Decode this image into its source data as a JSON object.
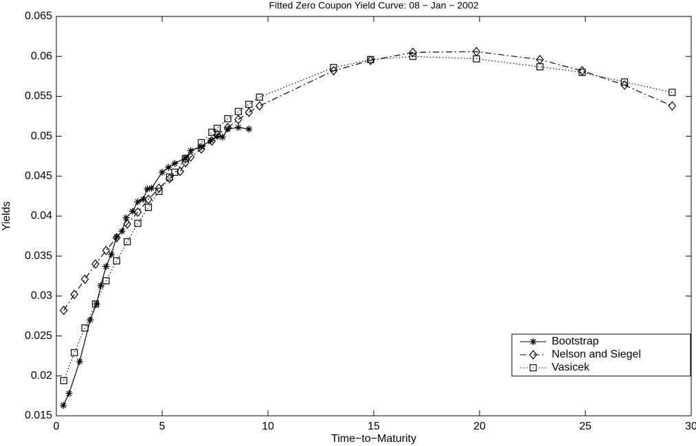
{
  "chart_data": {
    "type": "line",
    "title": "Fitted Zero Coupon Yield Curve: 08 − Jan − 2002",
    "x_label": "Time−to−Maturity",
    "y_label": "Yields",
    "xlim": [
      0,
      30
    ],
    "xticks": [
      0,
      5,
      10,
      15,
      20,
      25,
      30
    ],
    "ylim": [
      0.015,
      0.065
    ],
    "yticks": [
      0.015,
      0.02,
      0.025,
      0.03,
      0.035,
      0.04,
      0.045,
      0.05,
      0.055,
      0.06,
      0.065
    ],
    "grid": false,
    "legend_position": "lower-right",
    "series": [
      {
        "name": "Bootstrap",
        "color": "#000000",
        "marker": "star",
        "dash": "solid",
        "x": [
          0.33,
          0.6,
          1.1,
          1.6,
          1.9,
          2.1,
          2.35,
          2.6,
          2.85,
          3.1,
          3.3,
          3.6,
          3.85,
          4.1,
          4.3,
          4.5,
          5.0,
          5.3,
          5.6,
          6.1,
          6.35,
          6.85,
          7.3,
          7.6,
          7.85,
          8.1,
          8.6,
          9.1
        ],
        "values": [
          0.0163,
          0.0178,
          0.0218,
          0.027,
          0.029,
          0.0313,
          0.0337,
          0.0352,
          0.0374,
          0.0381,
          0.0398,
          0.0406,
          0.0418,
          0.0421,
          0.0434,
          0.0435,
          0.0455,
          0.0461,
          0.0466,
          0.0473,
          0.0482,
          0.0487,
          0.0495,
          0.05,
          0.0499,
          0.0509,
          0.0511,
          0.0509
        ]
      },
      {
        "name": "Nelson and Siegel",
        "color": "#000000",
        "marker": "diamond",
        "dash": "dashdot",
        "x": [
          0.35,
          0.85,
          1.35,
          1.85,
          2.35,
          2.85,
          3.35,
          3.85,
          4.35,
          4.85,
          5.35,
          5.85,
          6.1,
          6.35,
          6.85,
          7.35,
          7.6,
          8.1,
          8.6,
          9.1,
          9.6,
          13.1,
          14.85,
          16.85,
          19.85,
          22.85,
          24.85,
          26.85,
          29.1
        ],
        "values": [
          0.0282,
          0.0302,
          0.0321,
          0.034,
          0.0357,
          0.0373,
          0.039,
          0.0405,
          0.0421,
          0.0435,
          0.0447,
          0.0456,
          0.0467,
          0.0474,
          0.0484,
          0.0494,
          0.0502,
          0.0511,
          0.0521,
          0.053,
          0.0538,
          0.0582,
          0.0595,
          0.0605,
          0.0606,
          0.0596,
          0.0582,
          0.0564,
          0.0538
        ]
      },
      {
        "name": "Vasicek",
        "color": "#000000",
        "marker": "square",
        "dash": "dotted",
        "x": [
          0.35,
          0.85,
          1.35,
          1.85,
          2.35,
          2.85,
          3.35,
          3.85,
          4.35,
          4.85,
          5.35,
          5.6,
          6.1,
          6.85,
          7.35,
          7.6,
          8.1,
          8.6,
          9.1,
          9.6,
          13.1,
          14.85,
          16.85,
          19.85,
          22.85,
          24.85,
          26.85,
          29.1
        ],
        "values": [
          0.0194,
          0.0229,
          0.026,
          0.029,
          0.0319,
          0.0344,
          0.0368,
          0.0391,
          0.0411,
          0.0431,
          0.0449,
          0.0455,
          0.0472,
          0.0492,
          0.0505,
          0.051,
          0.0522,
          0.0531,
          0.054,
          0.0549,
          0.0586,
          0.0596,
          0.06,
          0.0597,
          0.0587,
          0.058,
          0.0568,
          0.0555
        ]
      }
    ]
  }
}
